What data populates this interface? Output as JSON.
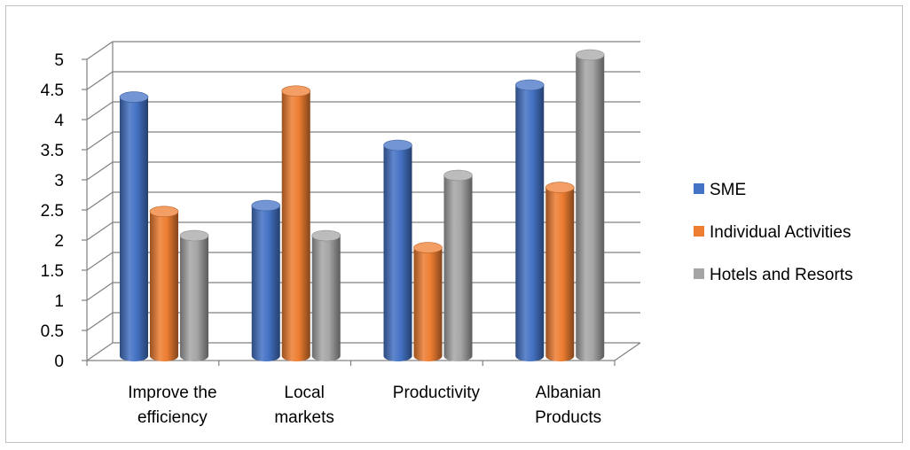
{
  "chart_data": {
    "type": "bar",
    "title": "",
    "xlabel": "",
    "ylabel": "",
    "ylim": [
      0,
      5
    ],
    "yticks": [
      "0",
      "0.5",
      "1",
      "1.5",
      "2",
      "2.5",
      "3",
      "3.5",
      "4",
      "4.5",
      "5"
    ],
    "categories": [
      [
        "Improve the",
        "efficiency"
      ],
      [
        "Local",
        "markets"
      ],
      [
        "Productivity"
      ],
      [
        "Albanian",
        "Products"
      ]
    ],
    "series": [
      {
        "name": "SME",
        "color": "#4472c4",
        "values": [
          4.3,
          2.5,
          3.5,
          4.5
        ]
      },
      {
        "name": "Individual Activities",
        "color": "#ed7d31",
        "values": [
          2.4,
          4.4,
          1.8,
          2.8
        ]
      },
      {
        "name": "Hotels and Resorts",
        "color": "#a5a5a5",
        "values": [
          2.0,
          2.0,
          3.0,
          5.0
        ]
      }
    ],
    "legend_position": "right",
    "grid": true,
    "style": "3d-cylinder"
  }
}
